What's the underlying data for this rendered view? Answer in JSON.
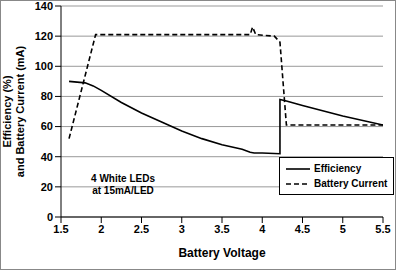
{
  "chart_data": {
    "type": "line",
    "x_label": "Battery Voltage",
    "y_label": "Efficiency (%) and Battery Current (mA)",
    "annotation": "4 White LEDs at 15mA/LED",
    "xlim": [
      1.5,
      5.5
    ],
    "xticks": [
      1.5,
      2,
      2.5,
      3,
      3.5,
      4,
      4.5,
      5,
      5.5
    ],
    "ylim": [
      0,
      140
    ],
    "yticks": [
      0,
      20,
      40,
      60,
      80,
      100,
      120,
      140
    ],
    "grid": true,
    "legend": "lower right",
    "series": [
      {
        "name": "Efficiency",
        "color": "#000000",
        "line_style": "solid",
        "x": [
          1.6,
          1.7,
          1.8,
          1.9,
          2.0,
          2.25,
          2.5,
          2.75,
          3.0,
          3.25,
          3.5,
          3.75,
          3.85,
          3.9,
          4.0,
          4.22,
          4.22,
          4.3,
          4.5,
          5.0,
          5.5
        ],
        "values": [
          90,
          89.5,
          89,
          87,
          84,
          76,
          69,
          63,
          57,
          52,
          48,
          45,
          43,
          42.5,
          42.5,
          42,
          78,
          77,
          74,
          67,
          61
        ]
      },
      {
        "name": "Battery Current",
        "color": "#000000",
        "line_style": "dashed",
        "x": [
          1.6,
          1.93,
          3.85,
          3.88,
          3.92,
          4.15,
          4.22,
          4.3,
          5.5
        ],
        "values": [
          52,
          121,
          121,
          126,
          121,
          120,
          116,
          61,
          61
        ]
      }
    ]
  }
}
